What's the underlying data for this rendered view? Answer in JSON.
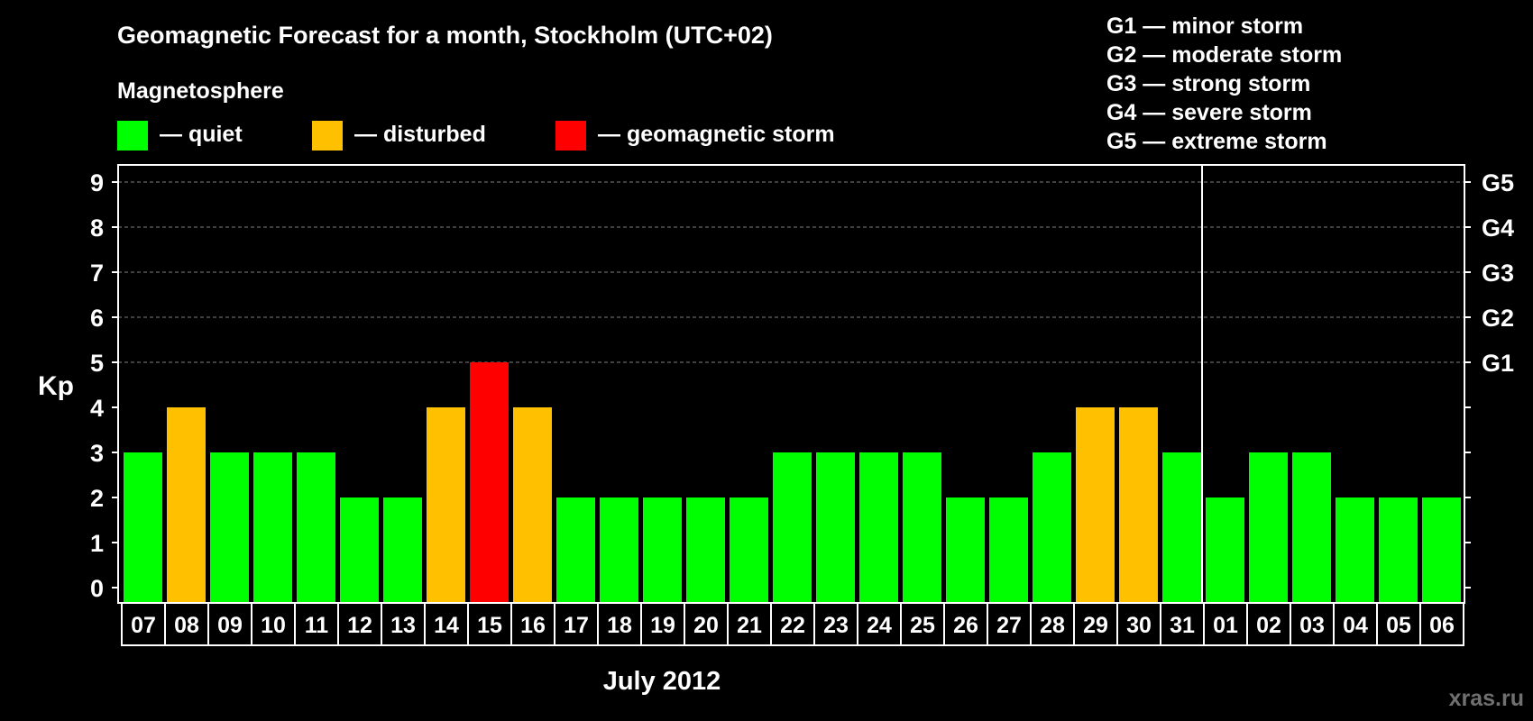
{
  "chart_data": {
    "type": "bar",
    "title": "Geomagnetic Forecast for a month, Stockholm (UTC+02)",
    "subtitle": "Magnetosphere",
    "xlabel": "July 2012",
    "ylabel": "Kp",
    "ylim": [
      0,
      9
    ],
    "yticks": [
      "0",
      "1",
      "2",
      "3",
      "4",
      "5",
      "6",
      "7",
      "8",
      "9"
    ],
    "right_ticks": [
      {
        "value": 5,
        "label": "G1"
      },
      {
        "value": 6,
        "label": "G2"
      },
      {
        "value": 7,
        "label": "G3"
      },
      {
        "value": 8,
        "label": "G4"
      },
      {
        "value": 9,
        "label": "G5"
      }
    ],
    "grid": "dashed horizontal at Kp 5-9",
    "month_boundary_after": "31",
    "categories": [
      "07",
      "08",
      "09",
      "10",
      "11",
      "12",
      "13",
      "14",
      "15",
      "16",
      "17",
      "18",
      "19",
      "20",
      "21",
      "22",
      "23",
      "24",
      "25",
      "26",
      "27",
      "28",
      "29",
      "30",
      "31",
      "01",
      "02",
      "03",
      "04",
      "05",
      "06"
    ],
    "values": [
      3,
      4,
      3,
      3,
      3,
      2,
      2,
      4,
      5,
      4,
      2,
      2,
      2,
      2,
      2,
      3,
      3,
      3,
      3,
      2,
      2,
      3,
      4,
      4,
      3,
      2,
      3,
      3,
      2,
      2,
      2
    ],
    "status": [
      "quiet",
      "disturbed",
      "quiet",
      "quiet",
      "quiet",
      "quiet",
      "quiet",
      "disturbed",
      "storm",
      "disturbed",
      "quiet",
      "quiet",
      "quiet",
      "quiet",
      "quiet",
      "quiet",
      "quiet",
      "quiet",
      "quiet",
      "quiet",
      "quiet",
      "quiet",
      "disturbed",
      "disturbed",
      "quiet",
      "quiet",
      "quiet",
      "quiet",
      "quiet",
      "quiet",
      "quiet"
    ],
    "legend": [
      {
        "key": "quiet",
        "label": "— quiet",
        "color": "#00ff00"
      },
      {
        "key": "disturbed",
        "label": "— disturbed",
        "color": "#ffc000"
      },
      {
        "key": "storm",
        "label": "— geomagnetic storm",
        "color": "#ff0000"
      }
    ],
    "storm_scale": [
      "G1 — minor storm",
      "G2 — moderate storm",
      "G3 — strong storm",
      "G4 — severe storm",
      "G5 — extreme storm"
    ]
  },
  "watermark": "xras.ru"
}
